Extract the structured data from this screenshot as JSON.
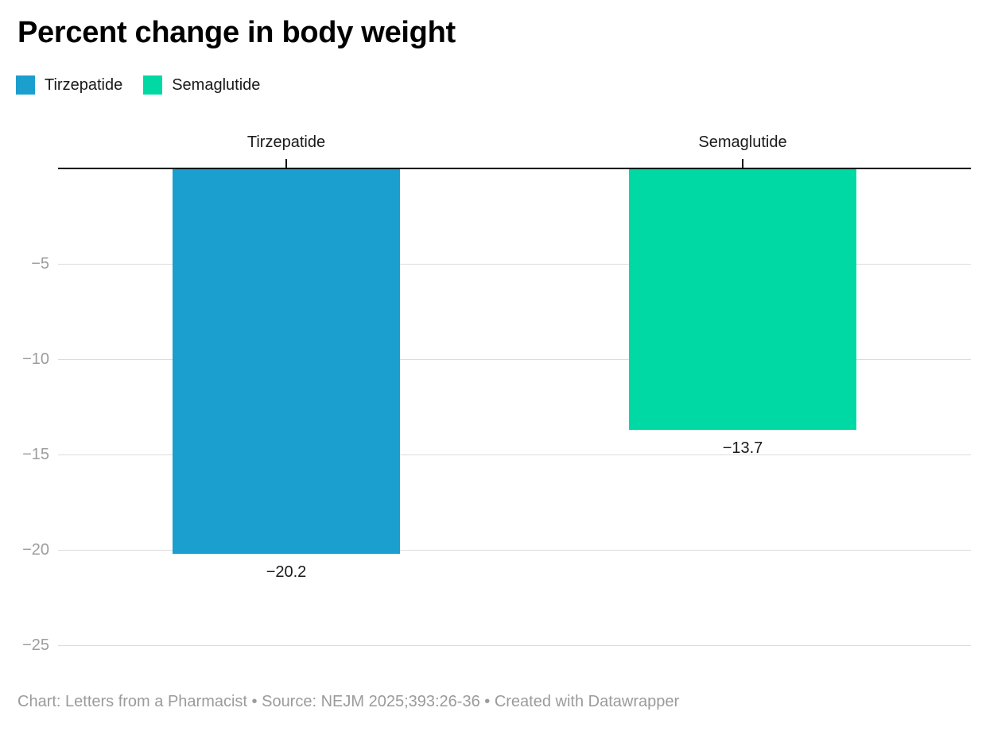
{
  "header": {
    "title": "Percent change in body weight"
  },
  "legend": {
    "items": [
      {
        "label": "Tirzepatide",
        "color": "#1a9fce"
      },
      {
        "label": "Semaglutide",
        "color": "#00d9a4"
      }
    ]
  },
  "footer": {
    "text": "Chart: Letters from a Pharmacist • Source: NEJM 2025;393:26-36 • Created with Datawrapper"
  },
  "chart_data": {
    "type": "bar",
    "orientation": "vertical",
    "title": "Percent change in body weight",
    "categories": [
      "Tirzepatide",
      "Semaglutide"
    ],
    "values": [
      -20.2,
      -13.7
    ],
    "value_labels": [
      "−20.2",
      "−13.7"
    ],
    "colors": [
      "#1a9fce",
      "#00d9a4"
    ],
    "yticks": [
      -5,
      -10,
      -15,
      -20,
      -25
    ],
    "ytick_labels": [
      "−5",
      "−10",
      "−15",
      "−20",
      "−25"
    ],
    "ylim": [
      0,
      -27
    ],
    "baseline": 0,
    "grid": true,
    "legend_position": "top-left",
    "legend_entries": [
      "Tirzepatide",
      "Semaglutide"
    ],
    "xlabel": "",
    "ylabel": ""
  }
}
